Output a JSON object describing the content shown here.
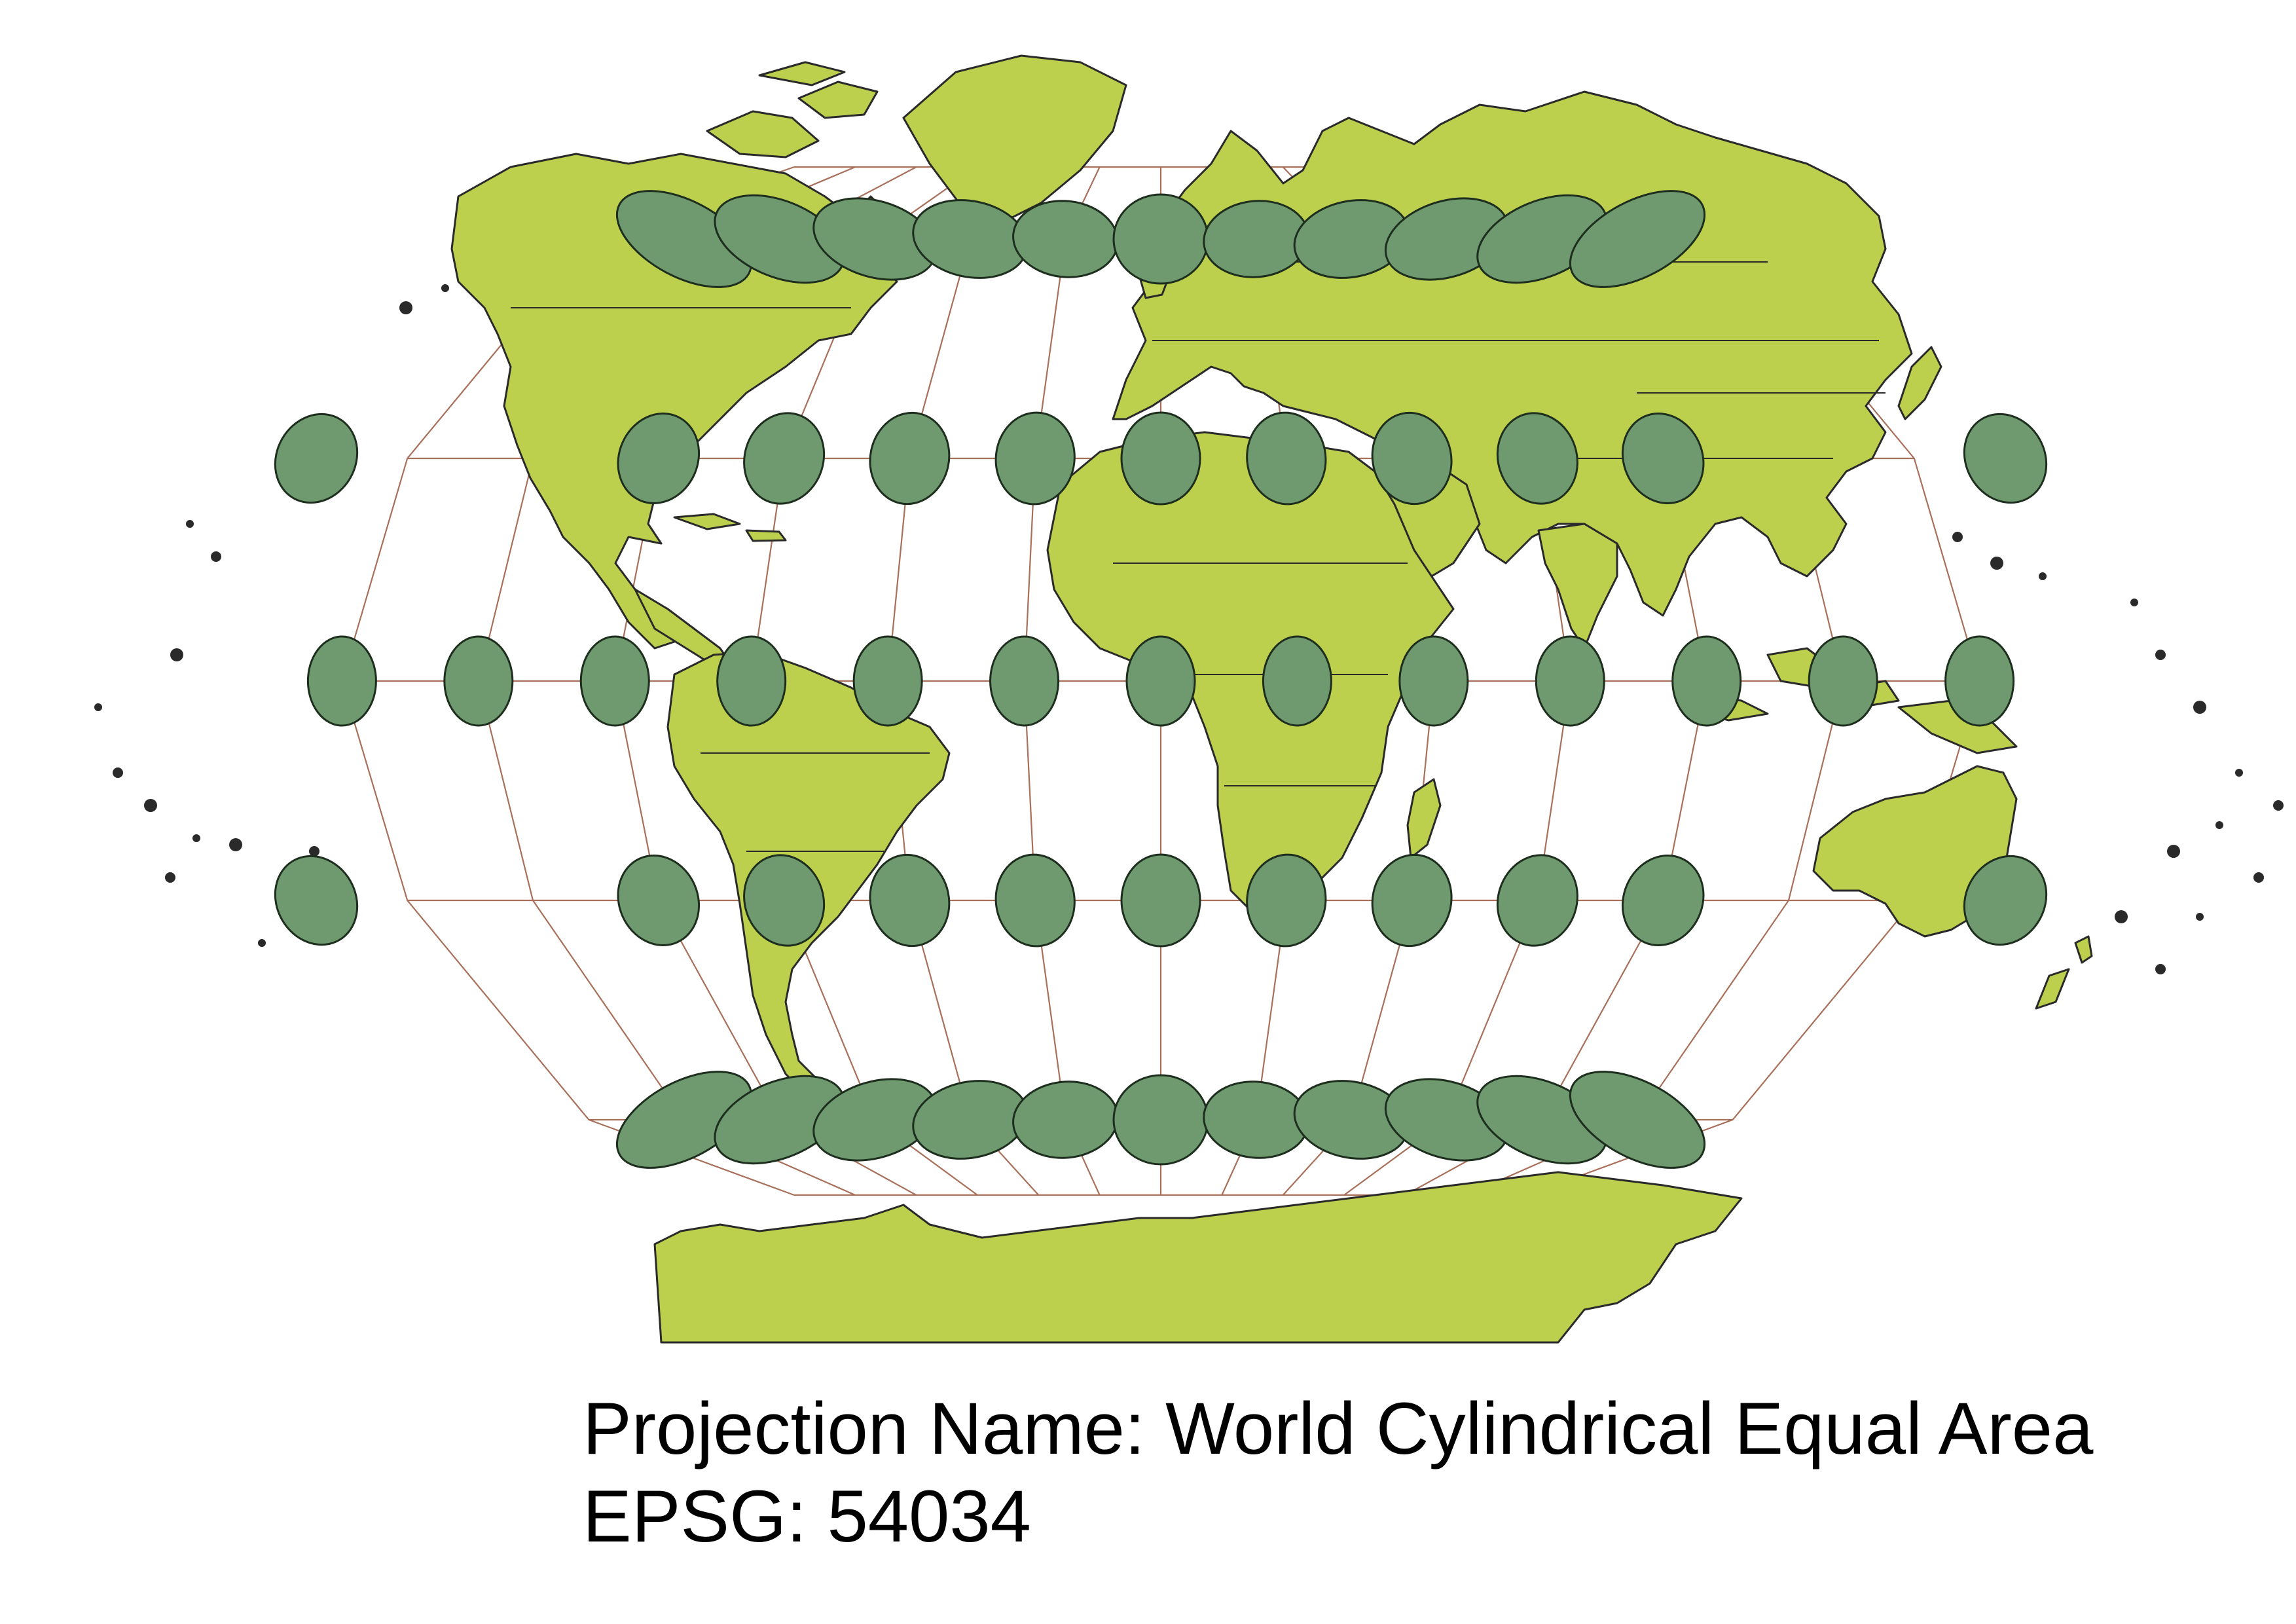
{
  "caption": {
    "projection_line": "Projection Name: World Cylindrical Equal Area",
    "epsg_line": "EPSG: 54034"
  },
  "map": {
    "land_color": "#bdd04e",
    "tissot_color": "#6f9a6f",
    "graticule_color": "#a8705a",
    "graticule": {
      "latitudes": [
        60,
        30,
        0,
        -30,
        -60
      ],
      "longitudes": [
        -150,
        -120,
        -90,
        -60,
        -30,
        0,
        30,
        60,
        90,
        120,
        150
      ]
    },
    "tissot_indicatrices": {
      "latitudes": [
        60,
        30,
        0,
        -30,
        -60
      ],
      "longitudes": [
        -180,
        -150,
        -120,
        -90,
        -60,
        -30,
        0,
        30,
        60,
        90,
        120,
        150,
        180
      ]
    }
  }
}
